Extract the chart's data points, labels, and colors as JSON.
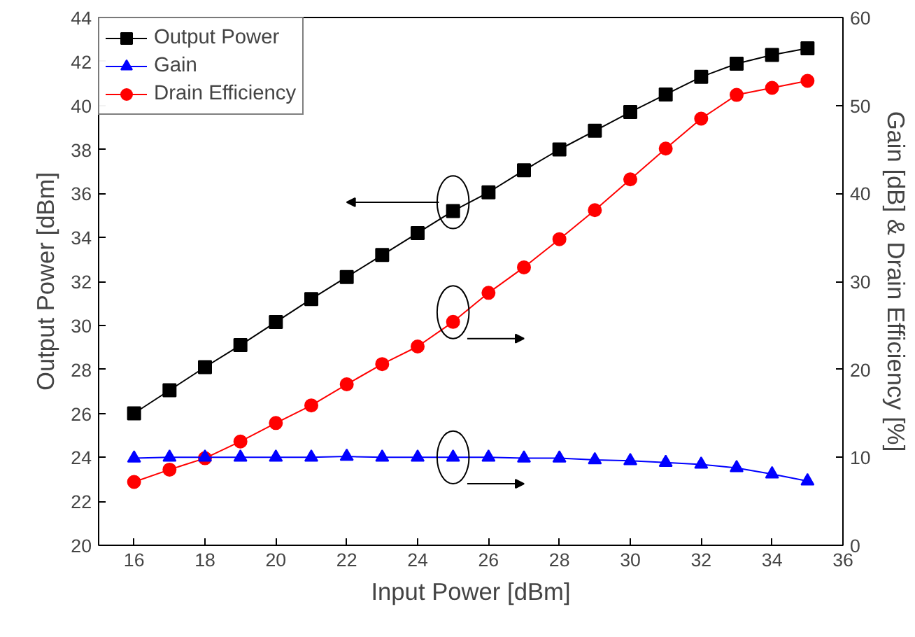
{
  "chart_data": {
    "type": "line",
    "xlabel": "Input Power [dBm]",
    "ylabel": "Output Power [dBm]",
    "y2label": "Gain [dB] & Drain Efficiency [%]",
    "x": [
      16,
      17,
      18,
      19,
      20,
      21,
      22,
      23,
      24,
      25,
      26,
      27,
      28,
      29,
      30,
      31,
      32,
      33,
      34,
      35
    ],
    "xlim": [
      15,
      36
    ],
    "xticks": [
      16,
      18,
      20,
      22,
      24,
      26,
      28,
      30,
      32,
      34,
      36
    ],
    "ylim": [
      20,
      44
    ],
    "yticks": [
      20,
      22,
      24,
      26,
      28,
      30,
      32,
      34,
      36,
      38,
      40,
      42,
      44
    ],
    "y2lim": [
      0,
      60
    ],
    "y2ticks": [
      0,
      10,
      20,
      30,
      40,
      50,
      60
    ],
    "grid": false,
    "legend": "top left",
    "series": [
      {
        "name": "Output Power",
        "color": "#000000",
        "marker": "square",
        "values": [
          26.0,
          27.05,
          28.1,
          29.1,
          30.15,
          31.2,
          32.2,
          33.2,
          34.2,
          35.2,
          36.05,
          37.05,
          38.0,
          38.85,
          39.7,
          40.5,
          41.3,
          41.9,
          42.3,
          42.6
        ]
      },
      {
        "name": "Gain",
        "color": "#0000ff",
        "marker": "triangle",
        "axis": "y2",
        "values": [
          9.9,
          10.0,
          10.0,
          10.0,
          10.0,
          10.0,
          10.1,
          10.0,
          10.0,
          10.0,
          10.0,
          9.9,
          9.9,
          9.7,
          9.6,
          9.4,
          9.2,
          8.8,
          8.1,
          7.3
        ]
      },
      {
        "name": "Drain Efficiency",
        "color": "#ff0000",
        "marker": "circle",
        "axis": "y2",
        "values": [
          7.2,
          8.6,
          9.9,
          11.8,
          13.9,
          15.9,
          18.3,
          20.6,
          22.6,
          25.4,
          28.7,
          31.6,
          34.8,
          38.1,
          41.6,
          45.1,
          48.5,
          51.2,
          52.0,
          52.8
        ]
      }
    ]
  }
}
